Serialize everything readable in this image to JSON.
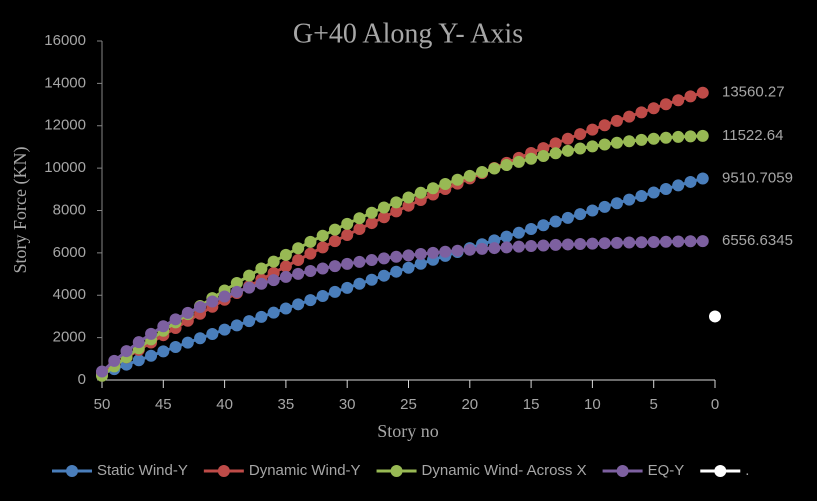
{
  "chart_data": {
    "type": "line",
    "title": "G+40 Along Y- Axis",
    "x_label": "Story no",
    "y_label": "Story Force (KN)",
    "x": [
      50,
      49,
      48,
      47,
      46,
      45,
      44,
      43,
      42,
      41,
      40,
      39,
      38,
      37,
      36,
      35,
      34,
      33,
      32,
      31,
      30,
      29,
      28,
      27,
      26,
      25,
      24,
      23,
      22,
      21,
      20,
      19,
      18,
      17,
      16,
      15,
      14,
      13,
      12,
      11,
      10,
      9,
      8,
      7,
      6,
      5,
      4,
      3,
      2,
      1
    ],
    "xlim": [
      50,
      0
    ],
    "xticks": [
      50,
      45,
      40,
      35,
      30,
      25,
      20,
      15,
      10,
      5,
      0
    ],
    "ylim": [
      0,
      16000
    ],
    "yticks": [
      0,
      2000,
      4000,
      6000,
      8000,
      10000,
      12000,
      14000,
      16000
    ],
    "legend": "bottom",
    "series": [
      {
        "name": "Static Wind-Y",
        "color": "#4a7ebb",
        "values": [
          300,
          512,
          723,
          933,
          1142,
          1350,
          1557,
          1763,
          1968,
          2172,
          2375,
          2577,
          2778,
          2978,
          3177,
          3375,
          3572,
          3768,
          3963,
          4157,
          4350,
          4542,
          4733,
          4923,
          5112,
          5300,
          5487,
          5673,
          5858,
          6042,
          6225,
          6407,
          6588,
          6768,
          6947,
          7125,
          7302,
          7478,
          7653,
          7827,
          8000,
          8172,
          8343,
          8513,
          8682,
          8850,
          9017,
          9183,
          9348,
          9510.7059
        ]
      },
      {
        "name": "Dynamic Wind-Y",
        "color": "#be4b48",
        "values": [
          350,
          711,
          1067,
          1420,
          1769,
          2115,
          2456,
          2794,
          3128,
          3458,
          3785,
          4107,
          4426,
          4741,
          5053,
          5360,
          5664,
          5964,
          6260,
          6552,
          6841,
          7126,
          7407,
          7684,
          7957,
          8227,
          8493,
          8755,
          9013,
          9268,
          9518,
          9765,
          10008,
          10248,
          10483,
          10715,
          10943,
          11167,
          11388,
          11604,
          11817,
          12026,
          12232,
          12433,
          12631,
          12825,
          13015,
          13201,
          13384,
          13560.27
        ]
      },
      {
        "name": "Dynamic Wind- Across X",
        "color": "#98b954",
        "values": [
          200,
          642,
          1075,
          1500,
          1915,
          2322,
          2720,
          3109,
          3490,
          3862,
          4224,
          4579,
          4924,
          5260,
          5588,
          5907,
          6217,
          6519,
          6811,
          7095,
          7370,
          7636,
          7894,
          8142,
          8382,
          8613,
          8835,
          9049,
          9253,
          9449,
          9636,
          9815,
          9984,
          10145,
          10297,
          10440,
          10574,
          10700,
          10817,
          10925,
          11024,
          11114,
          11196,
          11269,
          11333,
          11388,
          11434,
          11472,
          11501,
          11522.64
        ]
      },
      {
        "name": "EQ-Y",
        "color": "#7d60a0",
        "values": [
          400,
          901,
          1361,
          1785,
          2175,
          2534,
          2864,
          3168,
          3447,
          3704,
          3941,
          4158,
          4358,
          4543,
          4712,
          4868,
          5011,
          5143,
          5265,
          5376,
          5479,
          5574,
          5661,
          5741,
          5815,
          5882,
          5945,
          6002,
          6055,
          6103,
          6148,
          6189,
          6227,
          6262,
          6294,
          6323,
          6350,
          6375,
          6398,
          6419,
          6439,
          6457,
          6473,
          6488,
          6502,
          6515,
          6526,
          6537,
          6547,
          6556.6345
        ]
      },
      {
        "name": ".",
        "color": "#ffffff",
        "x": [
          0
        ],
        "values": [
          3000
        ]
      }
    ]
  }
}
